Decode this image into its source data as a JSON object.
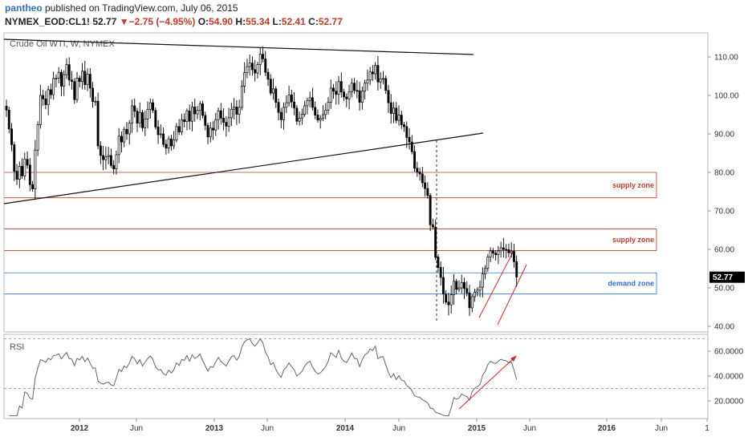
{
  "header": {
    "username": "pantheo",
    "published_text": " published on TradingView.com, July 06, 2015",
    "symbol": "NYMEX_EOD:CL1!",
    "last": "52.77",
    "change_arrow": "▼",
    "change": "−2.75 (−4.95%)",
    "o_label": "O:",
    "o_value": "54.90",
    "h_label": "H:",
    "h_value": "55.34",
    "l_label": "L:",
    "l_value": "52.41",
    "c_label": "C:",
    "c_value": "52.77"
  },
  "chart_data": [
    {
      "type": "candlestick",
      "title": "Crude Oil WTI, W, NYMEX",
      "y_axis_side": "right",
      "yticks": [
        "110.00",
        "100.00",
        "90.00",
        "80.00",
        "70.00",
        "60.00",
        "50.00",
        "40.00"
      ],
      "ylim": [
        38,
        114
      ],
      "x_tick_labels": [
        "2012",
        "Jun",
        "2013",
        "Jun",
        "2014",
        "Jun",
        "2015",
        "Jun",
        "2016",
        "Jun",
        "1"
      ],
      "last_price_label": "52.77",
      "closes": [
        96.2,
        91.3,
        87.2,
        80.3,
        78.2,
        81.6,
        79.1,
        83.4,
        81.9,
        76.8,
        75.7,
        85.8,
        92.4,
        100.0,
        99.1,
        97.6,
        101.5,
        100.2,
        104.4,
        104.5,
        106.0,
        102.4,
        105.4,
        108.0,
        104.0,
        103.6,
        98.9,
        104.5,
        103.6,
        106.3,
        102.8,
        105.5,
        101.9,
        98.4,
        98.5,
        86.9,
        84.4,
        83.3,
        84.1,
        84.4,
        81.8,
        80.9,
        84.6,
        89.4,
        87.9,
        91.2,
        90.0,
        92.8,
        97.3,
        95.9,
        92.8,
        95.6,
        91.6,
        93.9,
        96.4,
        98.1,
        96.1,
        91.8,
        89.8,
        90.0,
        87.3,
        86.3,
        88.7,
        86.9,
        88.4,
        91.9,
        90.5,
        93.7,
        93.2,
        96.0,
        93.3,
        97.0,
        95.2,
        96.1,
        97.8,
        94.8,
        92.2,
        89.2,
        91.5,
        91.0,
        93.7,
        96.0,
        94.1,
        93.0,
        92.0,
        94.2,
        96.4,
        97.0,
        95.1,
        96.9,
        102.4,
        105.9,
        107.5,
        108.4,
        106.7,
        105.8,
        108.0,
        110.7,
        109.5,
        106.0,
        104.2,
        100.6,
        101.7,
        98.2,
        95.6,
        93.7,
        96.9,
        98.1,
        100.1,
        98.3,
        96.7,
        93.3,
        94.1,
        95.1,
        97.3,
        98.7,
        99.4,
        96.9,
        94.9,
        93.6,
        94.0,
        95.0,
        96.2,
        98.2,
        101.9,
        101.1,
        100.3,
        103.6,
        100.9,
        99.6,
        99.1,
        100.9,
        103.2,
        101.3,
        101.2,
        98.2,
        101.1,
        103.2,
        104.0,
        106.1,
        105.6,
        107.8,
        103.5,
        104.3,
        104.4,
        101.3,
        98.1,
        95.3,
        96.7,
        93.5,
        94.9,
        92.4,
        91.9,
        89.1,
        87.9,
        85.4,
        81.1,
        80.1,
        79.6,
        77.3,
        75.8,
        74.0,
        66.4,
        65.8,
        58.0,
        55.3,
        52.7,
        48.4,
        46.3,
        45.6,
        48.2,
        51.7,
        49.6,
        50.0,
        51.4,
        49.8,
        48.7,
        44.8,
        47.7,
        48.9,
        49.4,
        50.2,
        53.6,
        55.1,
        58.0,
        59.6,
        59.0,
        58.6,
        59.6,
        60.4,
        60.0,
        59.9,
        59.1,
        59.5,
        56.8,
        52.8
      ],
      "annotations": {
        "supply_zones": [
          {
            "label": "supply zone",
            "from": 73.4,
            "to": 80.0
          },
          {
            "label": "supply zone",
            "from": 59.7,
            "to": 65.3
          }
        ],
        "demand_zone": {
          "label": "demand zone",
          "from": 48.4,
          "to": 53.9
        },
        "trendlines": [
          "descending resistance from ~114 (late 2011) to ~111 (early 2015)",
          "ascending support from ~73 (late 2011) to ~90 (early 2015)"
        ]
      },
      "colors": {
        "up_candle": "#ffffff",
        "down_candle": "#000000",
        "supply": "#c0392b",
        "demand": "#2f6fc9"
      }
    },
    {
      "type": "line",
      "title": "RSI",
      "yticks": [
        "60.0000",
        "40.0000",
        "20.0000"
      ],
      "ylim": [
        5,
        75
      ],
      "levels": [
        70,
        30
      ],
      "last_value": 38
    }
  ]
}
